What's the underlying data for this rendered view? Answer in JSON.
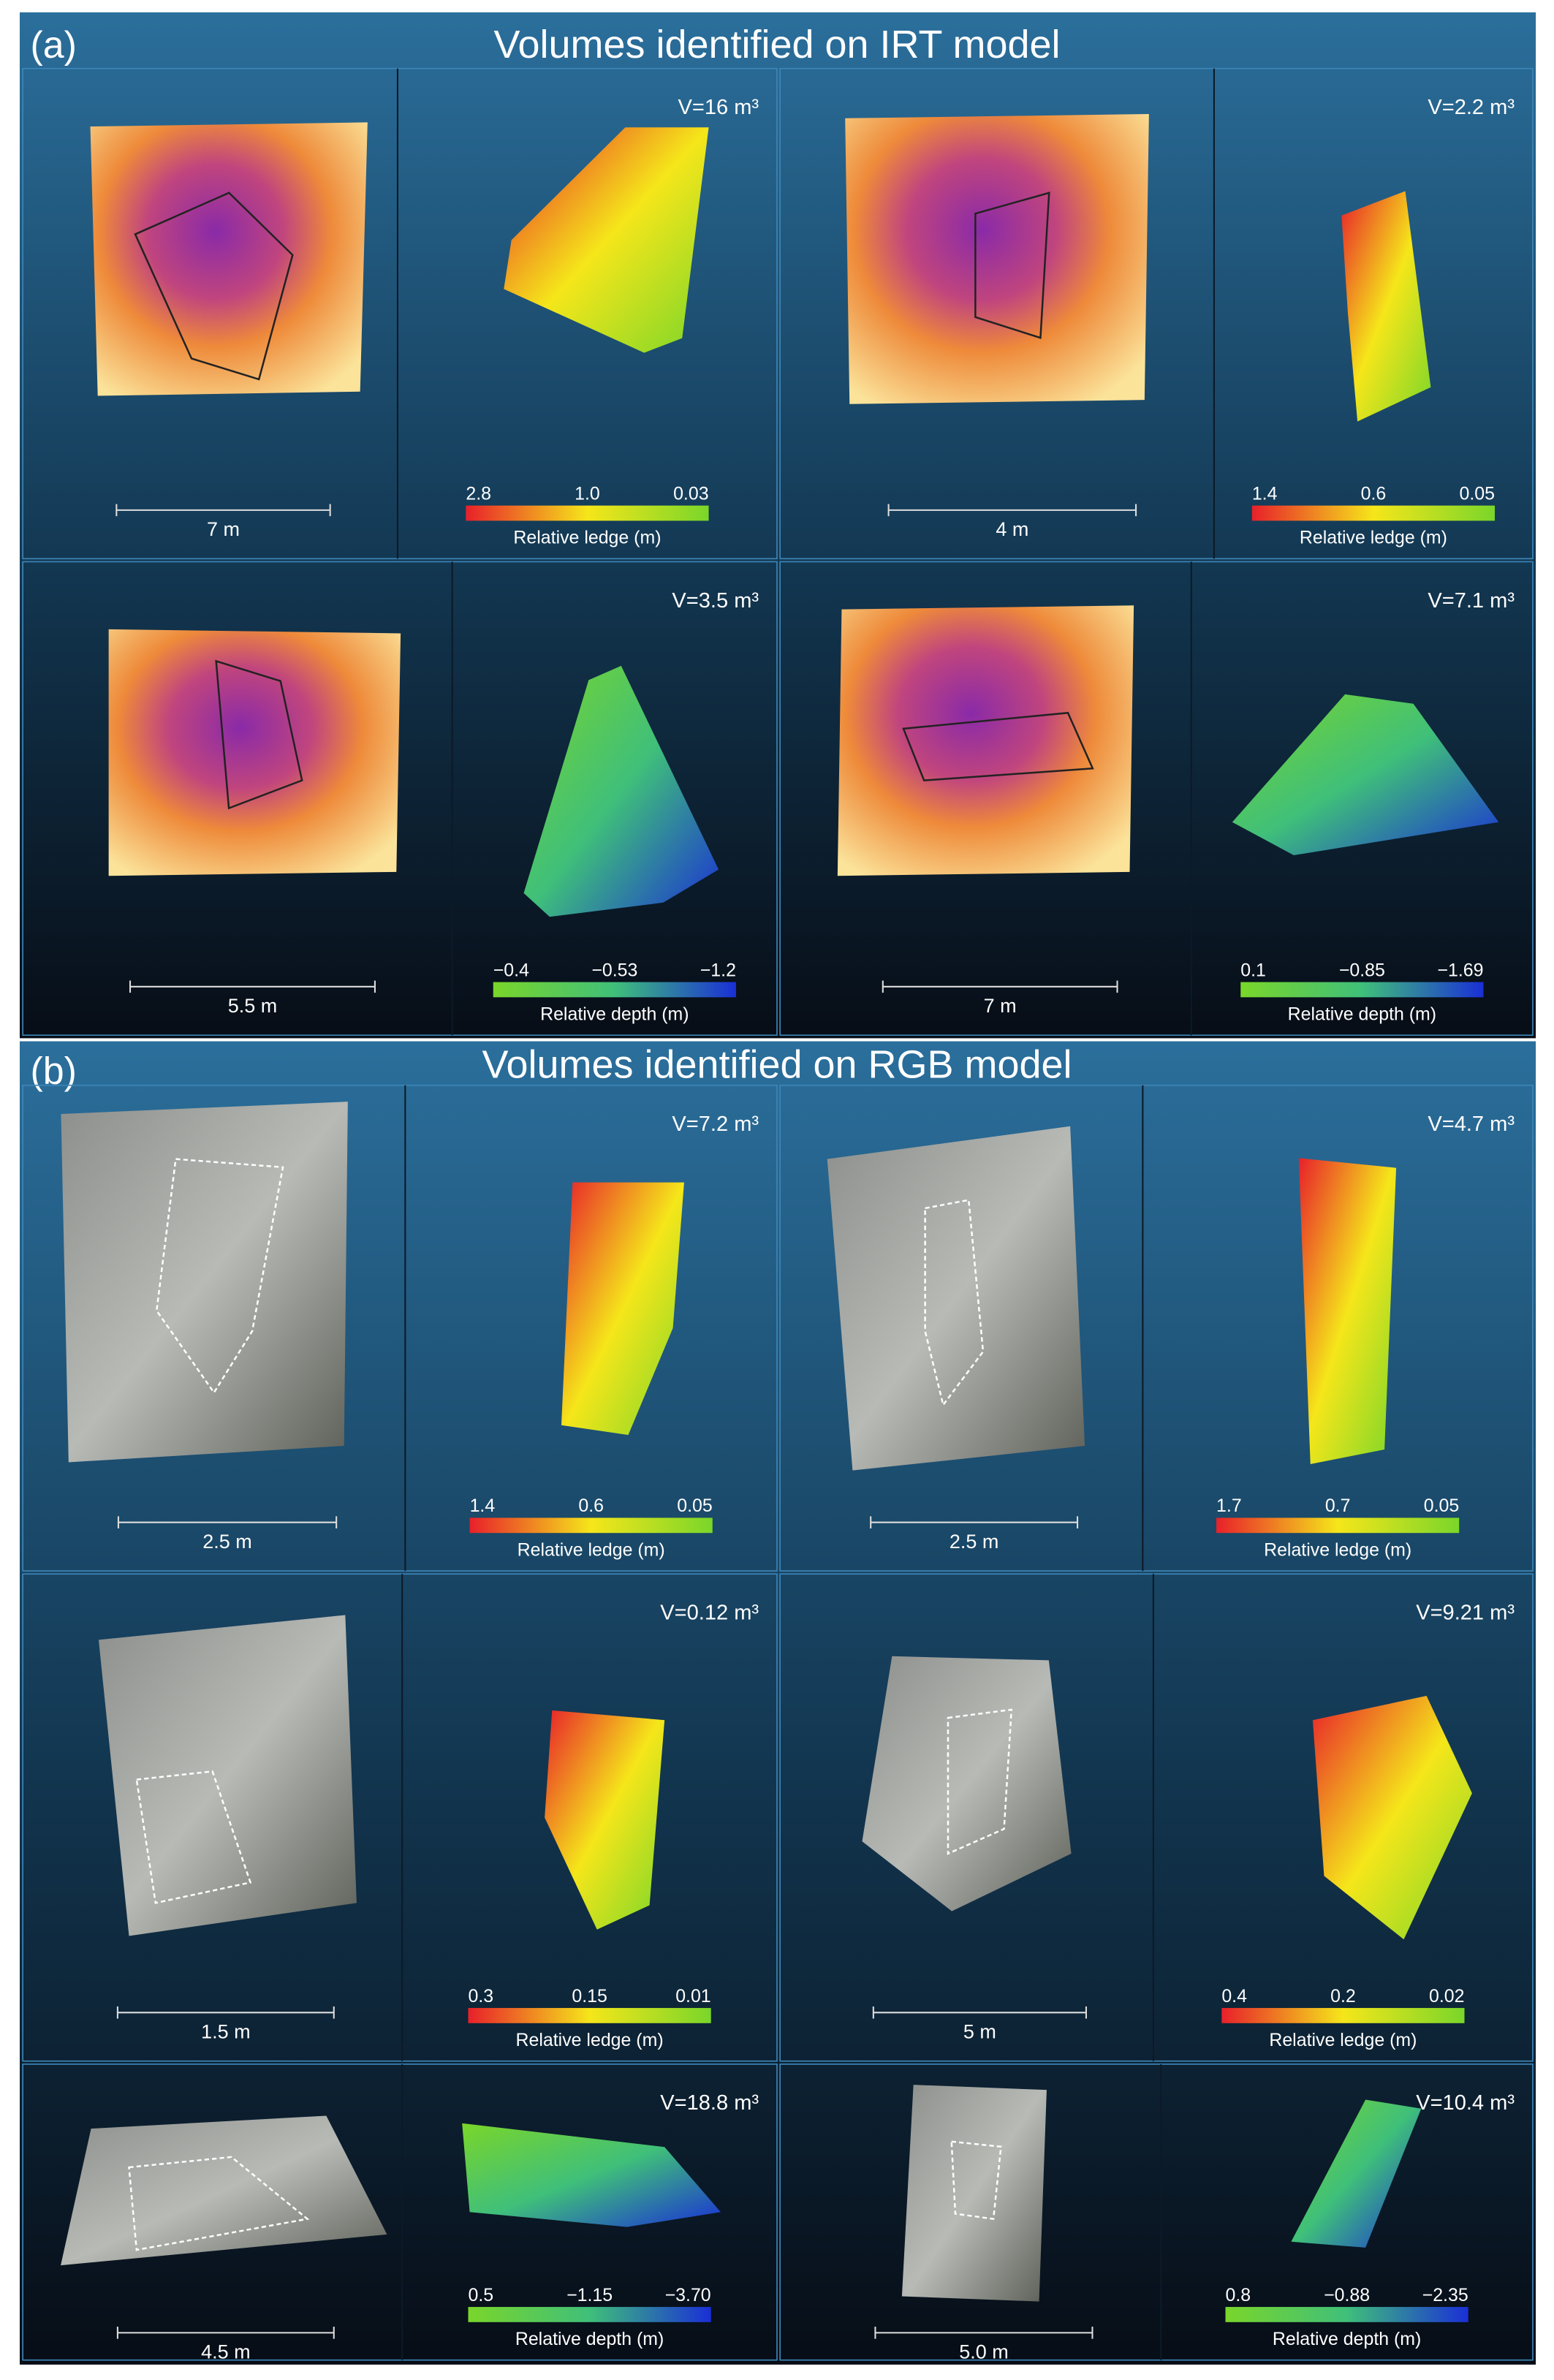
{
  "panels": [
    {
      "label": "(a)",
      "title": "Volumes identified on IRT model",
      "model": "irt",
      "cells": [
        {
          "volume": "V=16 m³",
          "scale_label": "7 m",
          "colorbar": {
            "ticks": [
              "2.8",
              "1.0",
              "0.03"
            ],
            "label": "Relative ledge (m)",
            "colors": [
              "#e8202a",
              "#f5e61a",
              "#7ad62a"
            ]
          }
        },
        {
          "volume": "V=2.2 m³",
          "scale_label": "4 m",
          "colorbar": {
            "ticks": [
              "1.4",
              "0.6",
              "0.05"
            ],
            "label": "Relative ledge (m)",
            "colors": [
              "#e8202a",
              "#f5e61a",
              "#7ad62a"
            ]
          }
        },
        {
          "volume": "V=3.5 m³",
          "scale_label": "5.5 m",
          "colorbar": {
            "ticks": [
              "−0.4",
              "−0.53",
              "−1.2"
            ],
            "label": "Relative depth (m)",
            "colors": [
              "#7ad62a",
              "#3fbf7a",
              "#1a2fd6"
            ]
          }
        },
        {
          "volume": "V=7.1 m³",
          "scale_label": "7 m",
          "colorbar": {
            "ticks": [
              "0.1",
              "−0.85",
              "−1.69"
            ],
            "label": "Relative depth (m)",
            "colors": [
              "#7ad62a",
              "#3fbf7a",
              "#1a2fd6"
            ]
          }
        }
      ]
    },
    {
      "label": "(b)",
      "title": "Volumes identified on RGB model",
      "model": "rgb",
      "cells": [
        {
          "volume": "V=7.2 m³",
          "scale_label": "2.5 m",
          "colorbar": {
            "ticks": [
              "1.4",
              "0.6",
              "0.05"
            ],
            "label": "Relative ledge (m)",
            "colors": [
              "#e8202a",
              "#f5e61a",
              "#7ad62a"
            ]
          }
        },
        {
          "volume": "V=4.7 m³",
          "scale_label": "2.5 m",
          "colorbar": {
            "ticks": [
              "1.7",
              "0.7",
              "0.05"
            ],
            "label": "Relative ledge (m)",
            "colors": [
              "#e8202a",
              "#f5e61a",
              "#7ad62a"
            ]
          }
        },
        {
          "volume": "V=0.12 m³",
          "scale_label": "1.5 m",
          "colorbar": {
            "ticks": [
              "0.3",
              "0.15",
              "0.01"
            ],
            "label": "Relative ledge (m)",
            "colors": [
              "#e8202a",
              "#f5e61a",
              "#7ad62a"
            ]
          }
        },
        {
          "volume": "V=9.21 m³",
          "scale_label": "5 m",
          "colorbar": {
            "ticks": [
              "0.4",
              "0.2",
              "0.02"
            ],
            "label": "Relative ledge (m)",
            "colors": [
              "#e8202a",
              "#f5e61a",
              "#7ad62a"
            ]
          }
        },
        {
          "volume": "V=18.8 m³",
          "scale_label": "4.5 m",
          "colorbar": {
            "ticks": [
              "0.5",
              "−1.15",
              "−3.70"
            ],
            "label": "Relative depth (m)",
            "colors": [
              "#7ad62a",
              "#3fbf7a",
              "#1a2fd6"
            ]
          }
        },
        {
          "volume": "V=10.4 m³",
          "scale_label": "5.0 m",
          "colorbar": {
            "ticks": [
              "0.8",
              "−0.88",
              "−2.35"
            ],
            "label": "Relative depth (m)",
            "colors": [
              "#7ad62a",
              "#3fbf7a",
              "#1a2fd6"
            ]
          }
        }
      ]
    }
  ]
}
